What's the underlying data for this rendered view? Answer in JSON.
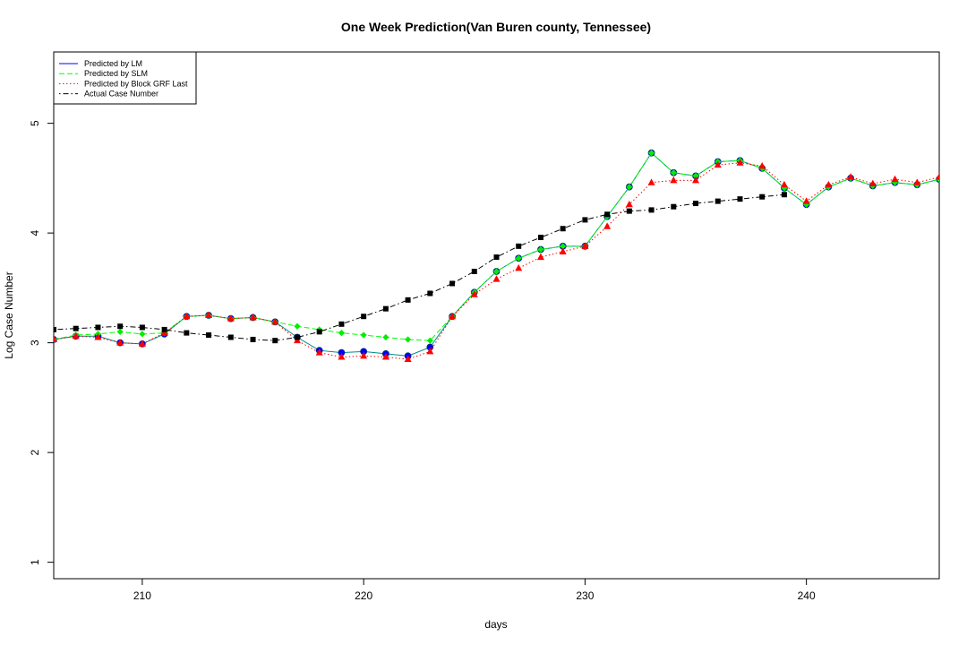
{
  "chart_data": {
    "type": "line",
    "title": "One Week Prediction(Van Buren county, Tennessee)",
    "xlabel": "days",
    "ylabel": "Log Case Number",
    "xlim": [
      206,
      246
    ],
    "ylim": [
      0.85,
      5.65
    ],
    "x_ticks": [
      210,
      220,
      230,
      240
    ],
    "y_ticks": [
      1,
      2,
      3,
      4,
      5
    ],
    "grid": false,
    "legend_position": "top-left",
    "x": [
      206,
      207,
      208,
      209,
      210,
      211,
      212,
      213,
      214,
      215,
      216,
      217,
      218,
      219,
      220,
      221,
      222,
      223,
      224,
      225,
      226,
      227,
      228,
      229,
      230,
      231,
      232,
      233,
      234,
      235,
      236,
      237,
      238,
      239,
      240,
      241,
      242,
      243,
      244,
      245,
      246
    ],
    "series": [
      {
        "name": "Predicted by LM",
        "color": "#0000ff",
        "line_color": "#008b8b",
        "line_style": "solid",
        "marker": "circle",
        "marker_color": "#0000ff",
        "values": [
          3.03,
          3.06,
          3.06,
          3.0,
          2.99,
          3.08,
          3.24,
          3.25,
          3.22,
          3.23,
          3.19,
          3.05,
          2.93,
          2.91,
          2.92,
          2.9,
          2.88,
          2.96,
          3.24,
          3.46,
          3.65,
          3.77,
          3.85,
          3.88,
          3.88,
          4.15,
          4.42,
          4.73,
          4.55,
          4.52,
          4.65,
          4.66,
          4.59,
          4.41,
          4.26,
          4.42,
          4.5,
          4.43,
          4.46,
          4.44,
          4.49
        ]
      },
      {
        "name": "Predicted by SLM",
        "color": "#00ff00",
        "line_style": "dashed",
        "marker": "diamond",
        "marker_color": "#00ee00",
        "values": [
          3.03,
          3.07,
          3.08,
          3.1,
          3.08,
          3.09,
          3.24,
          3.25,
          3.22,
          3.23,
          3.19,
          3.15,
          3.12,
          3.09,
          3.07,
          3.05,
          3.03,
          3.02,
          3.24,
          3.46,
          3.65,
          3.77,
          3.85,
          3.88,
          3.88,
          4.15,
          4.42,
          4.73,
          4.55,
          4.52,
          4.65,
          4.66,
          4.59,
          4.41,
          4.26,
          4.42,
          4.5,
          4.43,
          4.46,
          4.44,
          4.49
        ]
      },
      {
        "name": "Predicted by Block GRF Last",
        "color": "#ff0000",
        "line_style": "dotted",
        "marker": "triangle",
        "marker_color": "#ff0000",
        "values": [
          3.03,
          3.06,
          3.05,
          3.0,
          2.99,
          3.09,
          3.24,
          3.25,
          3.22,
          3.23,
          3.19,
          3.02,
          2.91,
          2.87,
          2.88,
          2.87,
          2.85,
          2.92,
          3.24,
          3.44,
          3.58,
          3.68,
          3.78,
          3.83,
          3.88,
          4.06,
          4.26,
          4.46,
          4.48,
          4.48,
          4.62,
          4.64,
          4.61,
          4.44,
          4.29,
          4.44,
          4.51,
          4.45,
          4.49,
          4.46,
          4.51
        ]
      },
      {
        "name": "Actual Case Number",
        "color": "#000000",
        "line_style": "dashdot",
        "marker": "square",
        "marker_color": "#000000",
        "values": [
          3.12,
          3.13,
          3.14,
          3.15,
          3.14,
          3.12,
          3.09,
          3.07,
          3.05,
          3.03,
          3.02,
          3.05,
          3.1,
          3.17,
          3.24,
          3.31,
          3.39,
          3.45,
          3.54,
          3.65,
          3.78,
          3.88,
          3.96,
          4.04,
          4.12,
          4.17,
          4.2,
          4.21,
          4.24,
          4.27,
          4.29,
          4.31,
          4.33,
          4.35,
          null,
          null,
          null,
          null,
          null,
          null,
          null
        ]
      }
    ]
  }
}
